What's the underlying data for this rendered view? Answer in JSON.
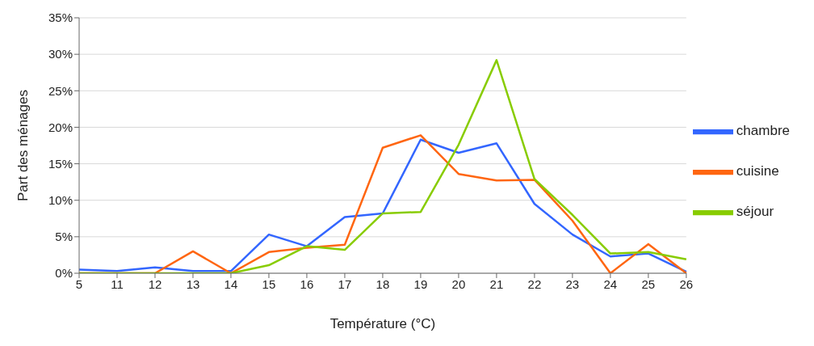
{
  "chart_data": {
    "type": "line",
    "xlabel": "Température (°C)",
    "ylabel": "Part des ménages",
    "categories": [
      "5",
      "11",
      "12",
      "13",
      "14",
      "15",
      "16",
      "17",
      "18",
      "19",
      "20",
      "21",
      "22",
      "23",
      "24",
      "25",
      "26"
    ],
    "series": [
      {
        "name": "chambre",
        "color": "#3366ff",
        "values": [
          0.5,
          0.3,
          0.8,
          0.3,
          0.3,
          5.3,
          3.7,
          7.7,
          8.2,
          18.3,
          16.5,
          17.8,
          9.5,
          5.3,
          2.3,
          2.7,
          0.2
        ]
      },
      {
        "name": "cuisine",
        "color": "#ff6611",
        "values": [
          0,
          0,
          0,
          3.0,
          0,
          2.9,
          3.5,
          3.9,
          17.2,
          18.9,
          13.6,
          12.7,
          12.8,
          7.2,
          0,
          4.0,
          0
        ]
      },
      {
        "name": "séjour",
        "color": "#88cc00",
        "values": [
          0,
          0,
          0,
          0,
          0,
          1.1,
          3.7,
          3.2,
          8.2,
          8.4,
          17.6,
          29.2,
          12.9,
          8.0,
          2.7,
          2.9,
          1.9
        ]
      }
    ],
    "ylim": [
      0,
      35
    ],
    "yticks": [
      {
        "value": 0,
        "label": "0%"
      },
      {
        "value": 5,
        "label": "5%"
      },
      {
        "value": 10,
        "label": "10%"
      },
      {
        "value": 15,
        "label": "15%"
      },
      {
        "value": 20,
        "label": "20%"
      },
      {
        "value": 25,
        "label": "25%"
      },
      {
        "value": 30,
        "label": "30%"
      },
      {
        "value": 35,
        "label": "35%"
      }
    ],
    "grid": "y",
    "legend": "right",
    "marker": "none",
    "line_style": "solid"
  }
}
